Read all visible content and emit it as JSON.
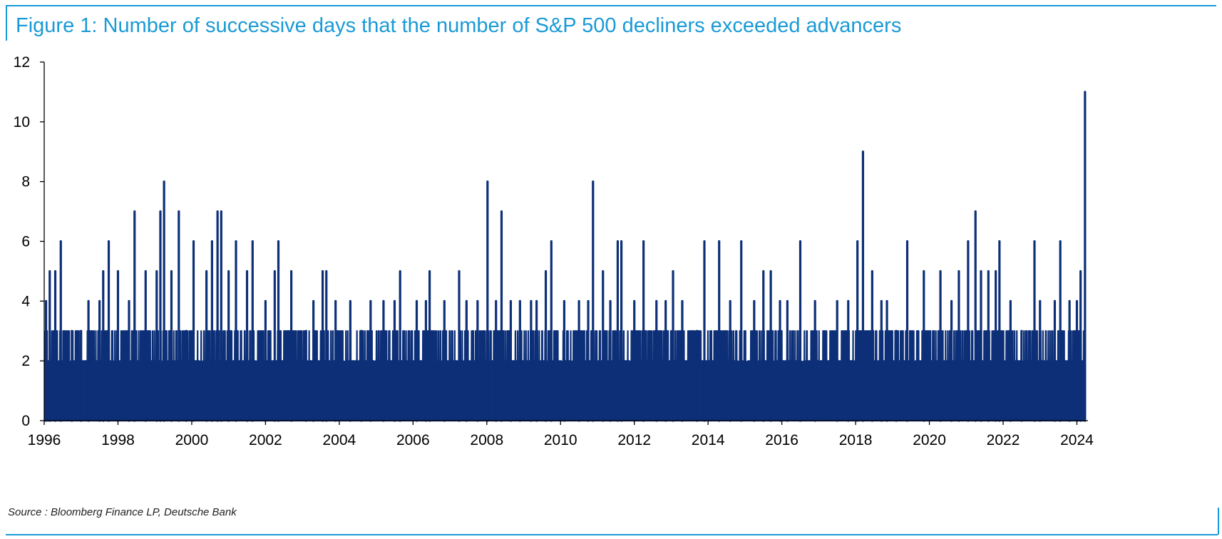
{
  "title": "Figure 1: Number of successive days that the number of S&P 500 decliners exceeded advancers",
  "source": "Source : Bloomberg Finance LP, Deutsche Bank",
  "colors": {
    "series": "#0c2f78",
    "frame": "#1a9ad6",
    "axis": "#000000"
  },
  "chart_data": {
    "type": "area",
    "title": "Figure 1: Number of successive days that the number of S&P 500 decliners exceeded advancers",
    "xlabel": "",
    "ylabel": "",
    "xlim": [
      1996,
      2024.3
    ],
    "ylim": [
      0,
      12
    ],
    "x_ticks": [
      "1996",
      "1998",
      "2000",
      "2002",
      "2004",
      "2006",
      "2008",
      "2010",
      "2012",
      "2014",
      "2016",
      "2018",
      "2020",
      "2022",
      "2024"
    ],
    "y_ticks": [
      "0",
      "2",
      "4",
      "6",
      "8",
      "10",
      "12"
    ],
    "grid": false,
    "legend": "none",
    "series": [
      {
        "peaks": [
          [
            1996.05,
            4
          ],
          [
            1996.15,
            5
          ],
          [
            1996.3,
            5
          ],
          [
            1996.45,
            6
          ],
          [
            1996.75,
            3
          ],
          [
            1997.0,
            3
          ],
          [
            1997.2,
            4
          ],
          [
            1997.5,
            4
          ],
          [
            1997.6,
            5
          ],
          [
            1997.75,
            6
          ],
          [
            1998.0,
            5
          ],
          [
            1998.3,
            4
          ],
          [
            1998.45,
            7
          ],
          [
            1998.75,
            5
          ],
          [
            1999.05,
            5
          ],
          [
            1999.15,
            7
          ],
          [
            1999.25,
            8
          ],
          [
            1999.45,
            5
          ],
          [
            1999.65,
            7
          ],
          [
            1999.85,
            3
          ],
          [
            2000.05,
            6
          ],
          [
            2000.4,
            5
          ],
          [
            2000.55,
            6
          ],
          [
            2000.7,
            7
          ],
          [
            2000.8,
            7
          ],
          [
            2001.0,
            5
          ],
          [
            2001.2,
            6
          ],
          [
            2001.5,
            5
          ],
          [
            2001.65,
            6
          ],
          [
            2002.0,
            4
          ],
          [
            2002.25,
            5
          ],
          [
            2002.35,
            6
          ],
          [
            2002.7,
            5
          ],
          [
            2003.1,
            3
          ],
          [
            2003.3,
            4
          ],
          [
            2003.55,
            5
          ],
          [
            2003.65,
            5
          ],
          [
            2003.9,
            4
          ],
          [
            2004.3,
            4
          ],
          [
            2004.6,
            3
          ],
          [
            2004.85,
            4
          ],
          [
            2005.2,
            4
          ],
          [
            2005.5,
            4
          ],
          [
            2005.65,
            5
          ],
          [
            2006.1,
            4
          ],
          [
            2006.35,
            4
          ],
          [
            2006.45,
            5
          ],
          [
            2006.85,
            4
          ],
          [
            2007.25,
            5
          ],
          [
            2007.45,
            4
          ],
          [
            2007.75,
            4
          ],
          [
            2008.02,
            8
          ],
          [
            2008.25,
            4
          ],
          [
            2008.4,
            7
          ],
          [
            2008.65,
            4
          ],
          [
            2008.9,
            4
          ],
          [
            2009.2,
            4
          ],
          [
            2009.35,
            4
          ],
          [
            2009.6,
            5
          ],
          [
            2009.75,
            6
          ],
          [
            2010.1,
            4
          ],
          [
            2010.5,
            4
          ],
          [
            2010.75,
            4
          ],
          [
            2010.88,
            8
          ],
          [
            2011.15,
            5
          ],
          [
            2011.35,
            4
          ],
          [
            2011.55,
            6
          ],
          [
            2011.65,
            6
          ],
          [
            2012.0,
            4
          ],
          [
            2012.25,
            6
          ],
          [
            2012.6,
            4
          ],
          [
            2012.85,
            4
          ],
          [
            2013.05,
            5
          ],
          [
            2013.3,
            4
          ],
          [
            2013.7,
            3
          ],
          [
            2013.9,
            6
          ],
          [
            2014.3,
            6
          ],
          [
            2014.6,
            4
          ],
          [
            2014.9,
            6
          ],
          [
            2015.25,
            4
          ],
          [
            2015.5,
            5
          ],
          [
            2015.7,
            5
          ],
          [
            2015.95,
            4
          ],
          [
            2016.15,
            4
          ],
          [
            2016.5,
            6
          ],
          [
            2016.9,
            4
          ],
          [
            2017.5,
            4
          ],
          [
            2017.8,
            4
          ],
          [
            2018.05,
            6
          ],
          [
            2018.2,
            9
          ],
          [
            2018.45,
            5
          ],
          [
            2018.7,
            4
          ],
          [
            2018.85,
            4
          ],
          [
            2019.1,
            3
          ],
          [
            2019.4,
            6
          ],
          [
            2019.85,
            5
          ],
          [
            2020.3,
            5
          ],
          [
            2020.6,
            4
          ],
          [
            2020.8,
            5
          ],
          [
            2021.05,
            6
          ],
          [
            2021.25,
            7
          ],
          [
            2021.4,
            5
          ],
          [
            2021.6,
            5
          ],
          [
            2021.8,
            5
          ],
          [
            2021.9,
            6
          ],
          [
            2022.2,
            4
          ],
          [
            2022.5,
            3
          ],
          [
            2022.85,
            6
          ],
          [
            2023.0,
            4
          ],
          [
            2023.4,
            4
          ],
          [
            2023.55,
            6
          ],
          [
            2023.8,
            4
          ],
          [
            2024.0,
            4
          ],
          [
            2024.1,
            5
          ],
          [
            2024.22,
            11
          ]
        ]
      }
    ]
  }
}
